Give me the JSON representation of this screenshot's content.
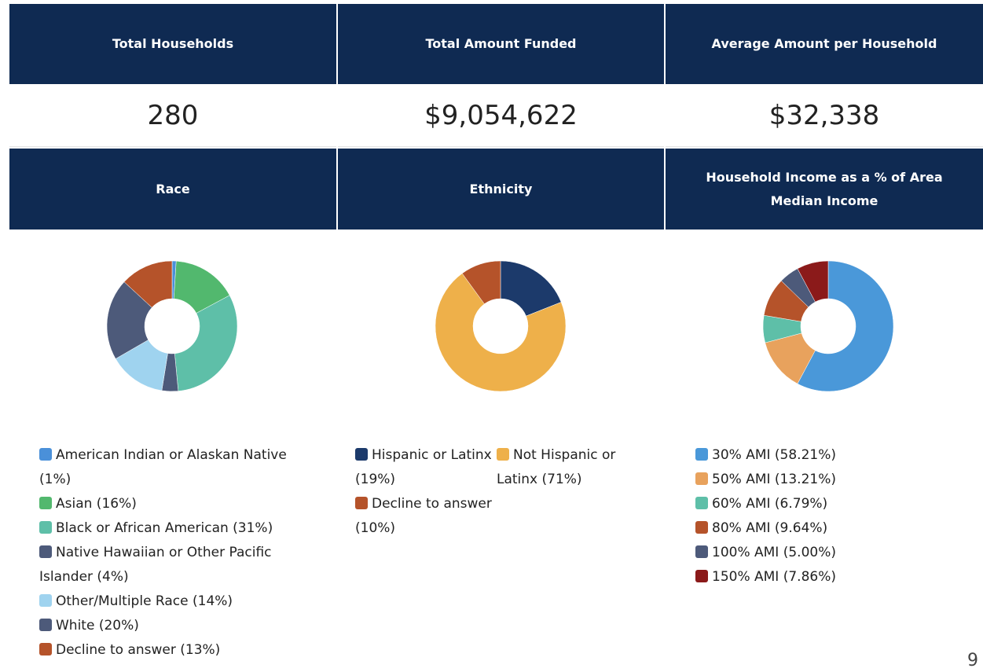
{
  "stats": [
    {
      "title": "Total Households",
      "value": "280"
    },
    {
      "title": "Total Amount Funded",
      "value": "$9,054,622"
    },
    {
      "title": "Average Amount per Household",
      "value": "$32,338"
    }
  ],
  "chart_data": [
    {
      "type": "donut",
      "title": "Race",
      "categories": [
        "American Indian or Alaskan Native (1%)",
        "Asian (16%)",
        "Black or African American (31%)",
        "Native Hawaiian or Other Pacific Islander (4%)",
        "Other/Multiple Race (14%)",
        "White (20%)",
        "Decline to answer (13%)"
      ],
      "values": [
        1,
        16,
        31,
        4,
        14,
        20,
        13
      ],
      "colors": [
        "#4a90d9",
        "#52b86e",
        "#5ebfa8",
        "#4d5a7a",
        "#9fd3ef",
        "#4d5a7a",
        "#b5532a"
      ]
    },
    {
      "type": "donut",
      "title": "Ethnicity",
      "categories": [
        "Hispanic or Latinx (19%)",
        "Not Hispanic or Latinx (71%)",
        "Decline to answer (10%)"
      ],
      "values": [
        19,
        71,
        10
      ],
      "colors": [
        "#1c3a6b",
        "#eeb04a",
        "#b5532a"
      ]
    },
    {
      "type": "donut",
      "title": "Household Income as a % of Area Median Income",
      "categories": [
        "30% AMI (58.21%)",
        "50% AMI (13.21%)",
        "60% AMI (6.79%)",
        "80% AMI (9.64%)",
        "100% AMI (5.00%)",
        "150% AMI (7.86%)"
      ],
      "values": [
        58.21,
        13.21,
        6.79,
        9.64,
        5.0,
        7.86
      ],
      "colors": [
        "#4a98d9",
        "#e8a25d",
        "#5ebfa8",
        "#b5532a",
        "#4d5a7a",
        "#8b1a1a"
      ]
    }
  ],
  "page_number": "9"
}
